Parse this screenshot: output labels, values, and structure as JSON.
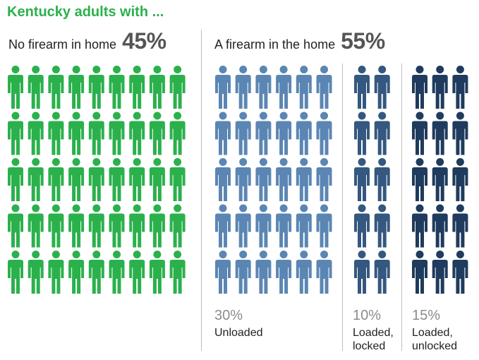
{
  "title": "Kentucky adults with ...",
  "groups": {
    "no_firearm": {
      "label": "No firearm in home",
      "percent": "45%"
    },
    "firearm": {
      "label": "A firearm in the home",
      "percent": "55%"
    }
  },
  "subgroups": {
    "unloaded": {
      "percent": "30%",
      "label": "Unloaded"
    },
    "loaded_locked": {
      "percent": "10%",
      "label": "Loaded,\nlocked"
    },
    "loaded_unlocked": {
      "percent": "15%",
      "label": "Loaded,\nunlocked"
    }
  },
  "chart_data": {
    "type": "pictograph",
    "title": "Kentucky adults with ...",
    "unit": "1 icon = 1%",
    "categories": [
      "No firearm in home",
      "Unloaded",
      "Loaded, locked",
      "Loaded, unlocked"
    ],
    "values": [
      45,
      30,
      10,
      15
    ],
    "colors": [
      "#2bb14c",
      "#5b86b3",
      "#34587f",
      "#1f3b5d"
    ]
  }
}
